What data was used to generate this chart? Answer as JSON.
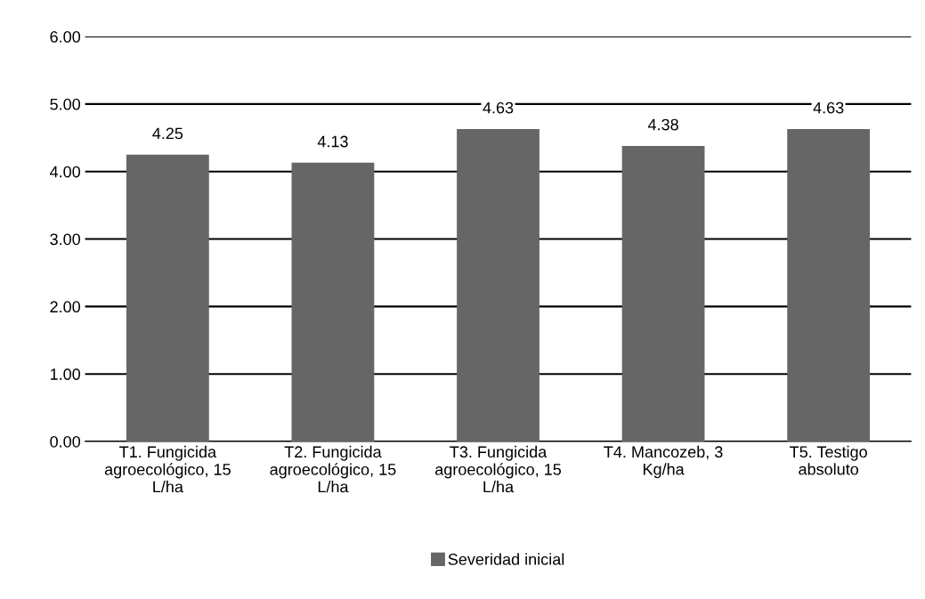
{
  "chart_data": {
    "type": "bar",
    "categories": [
      "T1. Fungicida agroecológico, 15 L/ha",
      "T2. Fungicida agroecológico, 15 L/ha",
      "T3. Fungicida agroecológico, 15 L/ha",
      "T4. Mancozeb, 3 Kg/ha",
      "T5. Testigo absoluto"
    ],
    "series": [
      {
        "name": "Severidad inicial",
        "color": "#666666",
        "values": [
          4.25,
          4.13,
          4.63,
          4.38,
          4.63
        ]
      }
    ],
    "data_labels": true,
    "ylim": [
      0,
      6
    ],
    "yticks": [
      {
        "value": 0,
        "label": "0.00"
      },
      {
        "value": 1,
        "label": "1.00"
      },
      {
        "value": 2,
        "label": "2.00"
      },
      {
        "value": 3,
        "label": "3.00"
      },
      {
        "value": 4,
        "label": "4.00"
      },
      {
        "value": 5,
        "label": "5.00"
      },
      {
        "value": 6,
        "label": "6.00"
      }
    ],
    "grid": "y",
    "legend": "bottom"
  }
}
